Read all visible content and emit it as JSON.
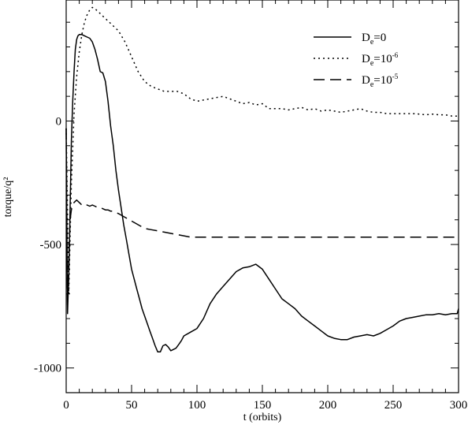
{
  "chart_data": {
    "type": "line",
    "title": "",
    "xlabel": "t (orbits)",
    "ylabel": "torque/q²",
    "xlim": [
      0,
      300
    ],
    "ylim": [
      -1100,
      490
    ],
    "xticks": [
      0,
      50,
      100,
      150,
      200,
      250,
      300
    ],
    "xtick_labels": [
      "0",
      "50",
      "100",
      "150",
      "200",
      "250",
      "300"
    ],
    "yticks": [
      -1000,
      -500,
      0
    ],
    "ytick_labels": [
      "-1000",
      "-500",
      "0"
    ],
    "grid": false,
    "legend_position": "top-right",
    "series": [
      {
        "name": "De=0",
        "legend": {
          "base": "D",
          "sub": "e",
          "rest": "=0",
          "sup": ""
        },
        "dash": "solid",
        "x": [
          0,
          1,
          2,
          3,
          4,
          5,
          6,
          7,
          8,
          9,
          10,
          12,
          14,
          16,
          18,
          20,
          22,
          24,
          26,
          28,
          30,
          32,
          34,
          36,
          38,
          40,
          42,
          44,
          46,
          48,
          50,
          52,
          54,
          56,
          58,
          60,
          62,
          64,
          66,
          68,
          70,
          72,
          74,
          76,
          78,
          80,
          82,
          84,
          86,
          88,
          90,
          95,
          100,
          105,
          110,
          115,
          120,
          125,
          130,
          135,
          140,
          145,
          150,
          155,
          160,
          165,
          170,
          175,
          180,
          185,
          190,
          195,
          200,
          205,
          210,
          215,
          220,
          225,
          230,
          235,
          240,
          245,
          250,
          255,
          260,
          265,
          270,
          275,
          280,
          285,
          290,
          295,
          299,
          300
        ],
        "y": [
          -30,
          -780,
          -620,
          -350,
          -80,
          80,
          200,
          290,
          330,
          345,
          350,
          350,
          345,
          340,
          335,
          320,
          290,
          250,
          200,
          195,
          160,
          80,
          -20,
          -100,
          -200,
          -280,
          -350,
          -420,
          -480,
          -540,
          -600,
          -640,
          -680,
          -720,
          -760,
          -790,
          -820,
          -850,
          -880,
          -910,
          -935,
          -935,
          -910,
          -905,
          -915,
          -930,
          -925,
          -920,
          -905,
          -890,
          -870,
          -855,
          -840,
          -800,
          -740,
          -700,
          -670,
          -640,
          -610,
          -595,
          -590,
          -580,
          -600,
          -640,
          -680,
          -720,
          -740,
          -760,
          -790,
          -810,
          -830,
          -850,
          -870,
          -880,
          -885,
          -885,
          -875,
          -870,
          -865,
          -870,
          -860,
          -845,
          -830,
          -810,
          -800,
          -795,
          -790,
          -785,
          -785,
          -780,
          -785,
          -780,
          -780,
          -760
        ]
      },
      {
        "name": "De=10^-6",
        "legend": {
          "base": "D",
          "sub": "e",
          "rest": "=10",
          "sup": "-6"
        },
        "dash": "dotted",
        "x": [
          0,
          2,
          4,
          6,
          8,
          10,
          12,
          14,
          16,
          18,
          20,
          22,
          24,
          26,
          28,
          30,
          35,
          40,
          45,
          50,
          55,
          60,
          65,
          70,
          75,
          80,
          85,
          90,
          95,
          100,
          105,
          110,
          115,
          120,
          125,
          130,
          135,
          140,
          145,
          150,
          155,
          160,
          165,
          170,
          175,
          180,
          185,
          190,
          195,
          200,
          205,
          210,
          215,
          220,
          225,
          230,
          235,
          240,
          245,
          250,
          255,
          260,
          265,
          270,
          275,
          280,
          285,
          290,
          295,
          300
        ],
        "y": [
          -30,
          -700,
          -250,
          30,
          180,
          280,
          350,
          400,
          430,
          450,
          460,
          455,
          445,
          435,
          425,
          415,
          390,
          365,
          320,
          260,
          200,
          160,
          140,
          130,
          120,
          120,
          120,
          110,
          90,
          80,
          85,
          90,
          95,
          100,
          90,
          80,
          70,
          75,
          65,
          70,
          50,
          50,
          50,
          45,
          50,
          55,
          45,
          50,
          40,
          45,
          40,
          35,
          40,
          45,
          50,
          40,
          35,
          35,
          30,
          30,
          30,
          30,
          30,
          28,
          25,
          28,
          25,
          25,
          20,
          20
        ]
      },
      {
        "name": "De=10^-5",
        "legend": {
          "base": "D",
          "sub": "e",
          "rest": "=10",
          "sup": "-5"
        },
        "dash": "dashed",
        "x": [
          0,
          1,
          2,
          3,
          4,
          5,
          6,
          8,
          10,
          12,
          14,
          16,
          18,
          20,
          22,
          24,
          26,
          28,
          30,
          32,
          34,
          36,
          38,
          40,
          45,
          50,
          55,
          60,
          65,
          70,
          75,
          80,
          85,
          90,
          95,
          100,
          110,
          120,
          150,
          200,
          250,
          300
        ],
        "y": [
          -30,
          -750,
          -550,
          -400,
          -360,
          -340,
          -330,
          -320,
          -330,
          -340,
          -345,
          -340,
          -345,
          -340,
          -345,
          -350,
          -350,
          -355,
          -360,
          -360,
          -365,
          -365,
          -370,
          -375,
          -390,
          -405,
          -420,
          -435,
          -440,
          -445,
          -450,
          -455,
          -460,
          -465,
          -470,
          -470,
          -470,
          -470,
          -470,
          -470,
          -470,
          -470
        ]
      }
    ]
  }
}
